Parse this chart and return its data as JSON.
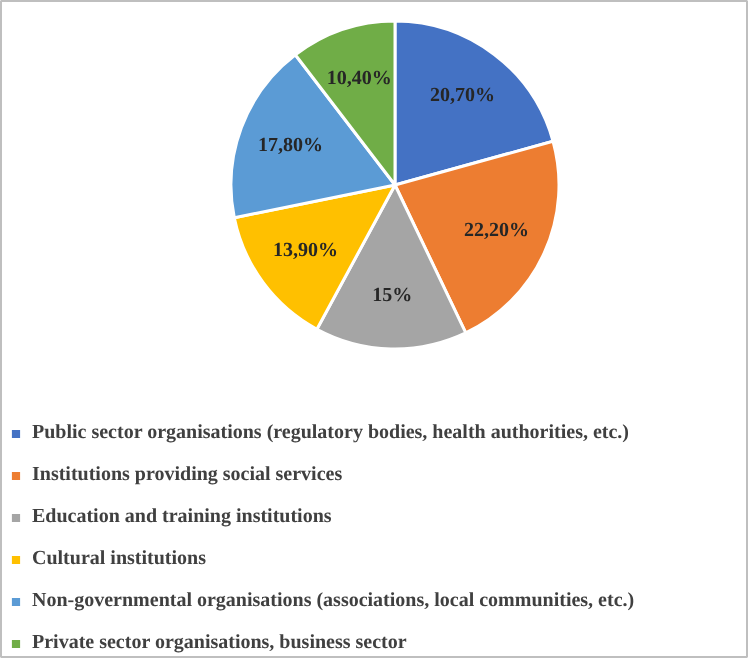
{
  "chart_data": {
    "type": "pie",
    "categories": [
      "Public sector organisations (regulatory bodies, health authorities, etc.)",
      "Institutions providing social services",
      "Education and training institutions",
      "Cultural institutions",
      "Non-governmental organisations (associations, local communities, etc.)",
      "Private sector organisations, business sector"
    ],
    "values": [
      20.7,
      22.2,
      15,
      13.9,
      17.8,
      10.4
    ],
    "value_labels": [
      "20,70%",
      "22,20%",
      "15%",
      "13,90%",
      "17,80%",
      "10,40%"
    ],
    "colors": [
      "#4472c4",
      "#ed7d31",
      "#a5a5a5",
      "#ffc000",
      "#5b9bd5",
      "#70ad47"
    ],
    "legend": "bottom"
  }
}
